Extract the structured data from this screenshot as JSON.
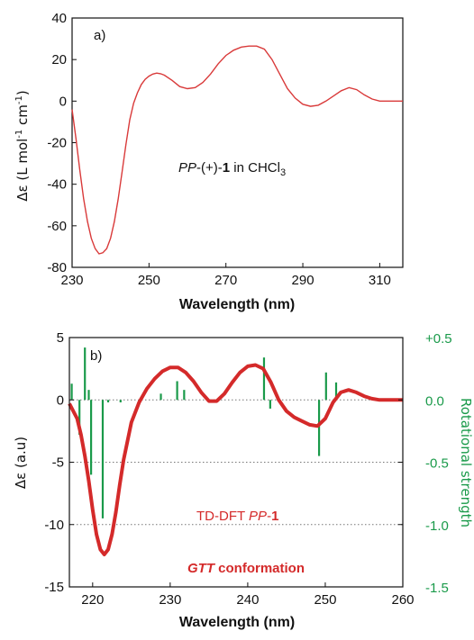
{
  "chart_data": [
    {
      "type": "line",
      "panel_label": "a)",
      "xlabel": "Wavelength (nm)",
      "ylabel": "Δε (L mol⁻¹ cm⁻¹)",
      "xlim": [
        230,
        316
      ],
      "ylim": [
        -80,
        40
      ],
      "xticks": [
        "230",
        "250",
        "270",
        "290",
        "310"
      ],
      "yticks": [
        "40",
        "20",
        "0",
        "-20",
        "-40",
        "-60",
        "-80"
      ],
      "annotation": "PP-(+)-1 in CHCl3",
      "series": [
        {
          "color": "#d93a3a",
          "x": [
            230,
            231,
            232,
            233,
            234,
            235,
            236,
            237,
            238,
            239,
            240,
            241,
            242,
            243,
            244,
            245,
            246,
            247,
            248,
            249,
            250,
            251,
            252,
            253,
            254,
            256,
            258,
            260,
            262,
            264,
            266,
            268,
            270,
            272,
            274,
            276,
            278,
            280,
            282,
            284,
            286,
            288,
            290,
            292,
            294,
            296,
            298,
            300,
            302,
            304,
            306,
            308,
            310,
            312,
            314,
            316
          ],
          "y": [
            -4,
            -18,
            -33,
            -47,
            -58,
            -66,
            -71,
            -73.5,
            -73,
            -71,
            -66,
            -58,
            -47,
            -34,
            -21,
            -9,
            -1,
            4,
            8,
            10.5,
            12,
            13,
            13.5,
            13.2,
            12.5,
            10,
            7,
            6,
            6.5,
            9,
            13,
            18,
            22,
            24.5,
            26,
            26.5,
            26.5,
            25,
            20,
            13,
            6,
            1.5,
            -1.5,
            -2.5,
            -2,
            0,
            2.5,
            5,
            6.5,
            5.5,
            3,
            1,
            0,
            0,
            0,
            0
          ]
        }
      ]
    },
    {
      "type": "line",
      "panel_label": "b)",
      "xlabel": "Wavelength (nm)",
      "ylabel": "Δε (a.u)",
      "y2label": "Rotational strength",
      "xlim": [
        217,
        260
      ],
      "ylim": [
        -15,
        5
      ],
      "y2lim": [
        -1.5,
        0.5
      ],
      "xticks": [
        "220",
        "230",
        "240",
        "250",
        "260"
      ],
      "yticks": [
        "5",
        "0",
        "-5",
        "-10",
        "-15"
      ],
      "y2ticks": [
        "+0.5",
        "0.0",
        "-0.5",
        "-1.0",
        "-1.5"
      ],
      "grid": "dotted horizontal at 0, -5, -10",
      "annotations": [
        "TD-DFT PP-1",
        "GTT conformation"
      ],
      "curve": {
        "color": "#d42a2a",
        "x": [
          217,
          218,
          218.5,
          219,
          219.5,
          220,
          220.5,
          221,
          221.5,
          222,
          222.5,
          223,
          223.5,
          224,
          225,
          226,
          227,
          228,
          229,
          230,
          231,
          232,
          233,
          234,
          235,
          236,
          237,
          238,
          239,
          240,
          241,
          242,
          243,
          244,
          245,
          246,
          247,
          248,
          249,
          250,
          251,
          252,
          253,
          254,
          255,
          256,
          257,
          258,
          259,
          260
        ],
        "y": [
          -0.3,
          -1.5,
          -2.8,
          -4.5,
          -6.5,
          -8.8,
          -10.8,
          -12.0,
          -12.4,
          -12.0,
          -10.8,
          -9.0,
          -6.8,
          -4.8,
          -1.8,
          -0.2,
          0.9,
          1.7,
          2.3,
          2.6,
          2.6,
          2.2,
          1.5,
          0.6,
          -0.1,
          -0.1,
          0.5,
          1.4,
          2.2,
          2.7,
          2.8,
          2.5,
          1.4,
          0,
          -0.9,
          -1.4,
          -1.7,
          -2.0,
          -2.1,
          -1.5,
          -0.2,
          0.6,
          0.8,
          0.6,
          0.3,
          0.1,
          0,
          0,
          0,
          0
        ]
      },
      "sticks": {
        "color": "#1a9a4a",
        "x": [
          217.3,
          218.3,
          219.0,
          219.5,
          219.8,
          221.3,
          222.0,
          223.6,
          228.8,
          230.9,
          231.8,
          242.1,
          242.9,
          249.2,
          250.1,
          251.4
        ],
        "r": [
          0.13,
          -0.28,
          0.42,
          0.08,
          -0.6,
          -0.95,
          -0.02,
          -0.02,
          0.05,
          0.15,
          0.08,
          0.34,
          -0.07,
          -0.45,
          0.22,
          0.14
        ]
      }
    }
  ]
}
